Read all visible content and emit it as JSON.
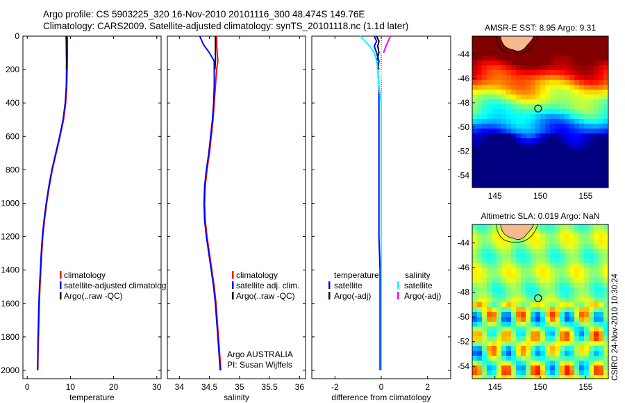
{
  "header": {
    "title_line1": "Argo profile: CS 5903225_320 16-Nov-2010 20101116_300 48.474S 149.76E",
    "title_line2": "Climatology: CARS2009. Satellite-adjusted climatology: synTS_20101118.nc (1.1d later)"
  },
  "credit": "CSIRO 24-Nov-2010 10:30:24",
  "colors": {
    "climatology": "#ff0000",
    "satellite": "#0000ff",
    "argo": "#000000",
    "satellite_salinity": "#00ffff",
    "argo_salinity_adj": "#ff00ff"
  },
  "chart_data": [
    {
      "type": "line",
      "name": "temperature-profile",
      "xlabel": "temperature",
      "ylabel": "",
      "xlim": [
        -1,
        31
      ],
      "ylim": [
        2050,
        0
      ],
      "xticks": [
        0,
        10,
        20,
        30
      ],
      "yticks": [
        0,
        200,
        400,
        600,
        800,
        1000,
        1200,
        1400,
        1600,
        1800,
        2000
      ],
      "series": [
        {
          "name": "climatology",
          "color": "#ff0000",
          "depth": [
            0,
            50,
            100,
            150,
            200,
            300,
            400,
            500,
            600,
            700,
            800,
            900,
            1000,
            1100,
            1200,
            1300,
            1400,
            1500,
            1600,
            1700,
            1800,
            1900,
            2000
          ],
          "values": [
            9.3,
            9.3,
            9.3,
            9.3,
            9.25,
            9.15,
            8.9,
            8.4,
            7.6,
            6.7,
            5.8,
            5.1,
            4.5,
            4.0,
            3.6,
            3.35,
            3.15,
            2.95,
            2.8,
            2.7,
            2.6,
            2.5,
            2.45
          ]
        },
        {
          "name": "satellite-adjusted climatology",
          "color": "#0000ff",
          "depth": [
            0,
            50,
            100,
            150,
            200,
            300,
            400,
            500,
            600,
            700,
            800,
            900,
            1000,
            1100,
            1200,
            1300,
            1400,
            1500,
            1600,
            1700,
            1800,
            1900,
            2000
          ],
          "values": [
            9.0,
            9.05,
            9.05,
            9.1,
            9.1,
            9.05,
            8.8,
            8.3,
            7.5,
            6.6,
            5.7,
            5.0,
            4.4,
            3.9,
            3.5,
            3.25,
            3.05,
            2.85,
            2.7,
            2.6,
            2.5,
            2.45,
            2.4
          ]
        },
        {
          "name": "Argo(..raw -QC)",
          "color": "#000000",
          "depth": [
            0,
            30,
            60,
            100,
            150,
            200
          ],
          "values": [
            9.1,
            9.2,
            9.15,
            9.2,
            9.15,
            9.1
          ]
        }
      ],
      "legend": [
        "climatology",
        "satellite-adjusted climatology",
        "Argo(..raw -QC)"
      ],
      "legend_position": "lower-right"
    },
    {
      "type": "line",
      "name": "salinity-profile",
      "xlabel": "salinity",
      "ylabel": "",
      "xlim": [
        33.8,
        36.1
      ],
      "ylim": [
        2050,
        0
      ],
      "xticks": [
        34,
        34.5,
        35,
        35.5,
        36
      ],
      "series": [
        {
          "name": "climatology",
          "color": "#ff0000",
          "depth": [
            0,
            50,
            100,
            150,
            200,
            300,
            400,
            500,
            600,
            700,
            800,
            900,
            1000,
            1100,
            1200,
            1300,
            1400,
            1500,
            1600,
            1700,
            1800,
            1900,
            2000
          ],
          "values": [
            34.62,
            34.62,
            34.63,
            34.64,
            34.62,
            34.6,
            34.58,
            34.56,
            34.53,
            34.5,
            34.46,
            34.43,
            34.42,
            34.43,
            34.46,
            34.5,
            34.54,
            34.58,
            34.61,
            34.63,
            34.65,
            34.67,
            34.69
          ]
        },
        {
          "name": "satellite adj. clim.",
          "color": "#0000ff",
          "depth": [
            0,
            50,
            100,
            150,
            200,
            300,
            400,
            500,
            600,
            700,
            800,
            900,
            1000,
            1100,
            1200,
            1300,
            1400,
            1500,
            1600,
            1700,
            1800,
            1900,
            2000
          ],
          "values": [
            34.34,
            34.4,
            34.5,
            34.58,
            34.58,
            34.58,
            34.57,
            34.55,
            34.52,
            34.49,
            34.45,
            34.42,
            34.41,
            34.42,
            34.45,
            34.49,
            34.53,
            34.57,
            34.6,
            34.62,
            34.64,
            34.66,
            34.68
          ]
        },
        {
          "name": "Argo(..raw -QC)",
          "color": "#000000",
          "depth": [
            0,
            30,
            60,
            100,
            150,
            200
          ],
          "values": [
            34.6,
            34.6,
            34.6,
            34.6,
            34.6,
            34.59
          ]
        }
      ],
      "legend": [
        "climatology",
        "satellite adj. clim.",
        "Argo(..raw -QC)"
      ],
      "legend_position": "lower-right",
      "annotation": [
        "Argo AUSTRALIA",
        "PI: Susan Wijffels"
      ]
    },
    {
      "type": "line",
      "name": "difference-profile",
      "xlabel": "difference from climatology",
      "ylabel": "",
      "xlim": [
        -3,
        3
      ],
      "ylim": [
        2050,
        0
      ],
      "xticks": [
        -2,
        0,
        2
      ],
      "series": [
        {
          "name": "temperature satellite",
          "color": "#0000ff",
          "depth": [
            0,
            30,
            60,
            100,
            150,
            200,
            300,
            400,
            600,
            800,
            1000,
            1200,
            1400,
            1600,
            1800,
            2000
          ],
          "values": [
            -0.3,
            -0.2,
            -0.3,
            -0.2,
            -0.1,
            -0.15,
            -0.1,
            -0.1,
            -0.1,
            -0.1,
            -0.1,
            -0.1,
            -0.05,
            -0.05,
            -0.05,
            -0.05
          ]
        },
        {
          "name": "temperature Argo(-adj)",
          "color": "#000000",
          "depth": [
            0,
            30,
            60,
            100,
            150,
            200
          ],
          "values": [
            -0.2,
            -0.1,
            -0.15,
            -0.1,
            -0.2,
            -0.1
          ]
        },
        {
          "name": "salinity satellite",
          "color": "#00ffff",
          "depth": [
            0,
            30,
            60,
            100,
            150,
            200,
            300,
            400,
            600,
            800,
            1000,
            1200,
            1400,
            1600,
            1800,
            2000
          ],
          "values": [
            -0.9,
            -0.7,
            -0.5,
            -0.3,
            -0.2,
            -0.15,
            -0.1,
            0.0,
            0.0,
            0.0,
            0.0,
            0.0,
            0.0,
            0.0,
            0.0,
            0.0
          ]
        },
        {
          "name": "salinity Argo(-adj)",
          "color": "#ff00ff",
          "depth": [
            0,
            30,
            60,
            100
          ],
          "values": [
            0.4,
            0.3,
            0.2,
            0.1
          ]
        }
      ],
      "legend_temperature_title": "temperature",
      "legend_salinity_title": "salinity",
      "legend_entries": [
        "satellite",
        "Argo(-adj)"
      ],
      "legend_position": "lower"
    },
    {
      "type": "heatmap",
      "name": "sst-map",
      "title": "AMSR-E SST: 8.95 Argo: 9.31",
      "xlim": [
        142.5,
        157.5
      ],
      "ylim": [
        -55,
        -42.5
      ],
      "xticks": [
        145,
        150,
        155
      ],
      "yticks": [
        -44,
        -46,
        -48,
        -50,
        -52,
        -54
      ],
      "marker": {
        "lon": 149.76,
        "lat": -48.474
      }
    },
    {
      "type": "heatmap",
      "name": "sla-map",
      "title": "Altimetric SLA: 0.019 Argo: NaN",
      "xlim": [
        142.5,
        157.5
      ],
      "ylim": [
        -55,
        -42.5
      ],
      "xticks": [
        145,
        150,
        155
      ],
      "yticks": [
        -44,
        -46,
        -48,
        -50,
        -52,
        -54
      ],
      "marker": {
        "lon": 149.76,
        "lat": -48.474
      }
    }
  ]
}
